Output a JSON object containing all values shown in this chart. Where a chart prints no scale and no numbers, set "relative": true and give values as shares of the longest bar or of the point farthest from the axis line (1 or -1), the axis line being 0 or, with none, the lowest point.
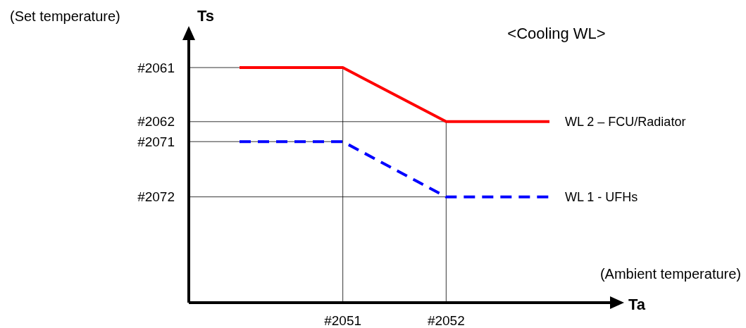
{
  "chart_data": {
    "type": "line",
    "title": "<Cooling WL>",
    "xlabel": "Ta",
    "ylabel": "Ts",
    "relative": true,
    "annotations": [
      "(Set temperature)",
      "(Ambient temperature)",
      {
        "text": "#2061",
        "x": "#2051",
        "y": 1
      },
      {
        "text": "#2062",
        "x": "#2052",
        "y": 0.77
      },
      {
        "text": "#2071",
        "x": "#2051",
        "y": 0.685
      },
      {
        "text": "#2072",
        "x": "#2052",
        "y": 0.45
      }
    ],
    "categories": [
      null,
      "#2051",
      "#2052",
      null
    ],
    "grid": true,
    "marker": "none",
    "series": [
      {
        "name": "WL 2 – FCU/Radiator",
        "color": "#ff0000",
        "line_style": "solid",
        "values": [
          1,
          1,
          0.77,
          0.77
        ]
      },
      {
        "name": "WL 1 - UFHs",
        "color": "#0000ff",
        "line_style": "dashed",
        "values": [
          0.685,
          0.685,
          0.45,
          0.45
        ]
      }
    ]
  }
}
